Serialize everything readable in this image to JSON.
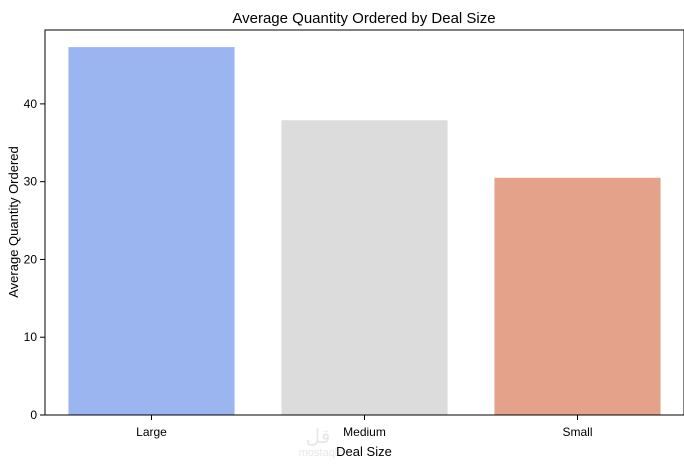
{
  "chart_data": {
    "type": "bar",
    "title": "Average Quantity Ordered by Deal Size",
    "xlabel": "Deal Size",
    "ylabel": "Average Quantity Ordered",
    "categories": [
      "Large",
      "Medium",
      "Small"
    ],
    "values": [
      47.3,
      37.9,
      30.5
    ],
    "colors": [
      "#9bb5f0",
      "#dcdcdc",
      "#e5a28a"
    ],
    "ylim": [
      0,
      49.5
    ],
    "yticks": [
      0,
      10,
      20,
      30,
      40
    ],
    "grid": false,
    "legend": "none"
  },
  "watermark": {
    "glyph": "قل",
    "text": "mostaql"
  }
}
